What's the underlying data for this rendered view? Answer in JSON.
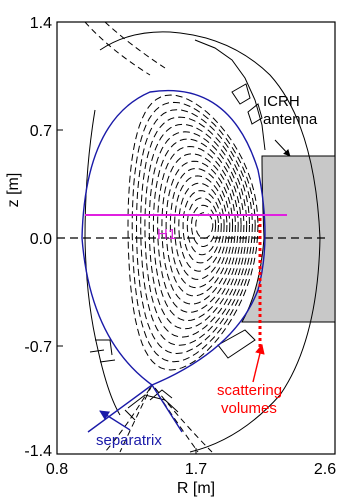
{
  "axes": {
    "x_label": "R [m]",
    "y_label": "z [m]",
    "x_ticks": [
      "0.8",
      "1.7",
      "2.6"
    ],
    "y_ticks": [
      "1.4",
      "0.7",
      "0.0",
      "-0.7",
      "-1.4"
    ]
  },
  "annotations": {
    "icrh_line1": "ICRH",
    "icrh_line2": "antenna",
    "h1": "H1",
    "scattering_line1": "scattering",
    "scattering_line2": "volumes",
    "separatrix": "separatrix"
  },
  "colors": {
    "separatrix": "#1a1aa8",
    "h1_line": "#e020e0",
    "scattering": "#ff0000",
    "antenna_fill": "#c8c8c8",
    "flux_surfaces": "#000000"
  }
}
